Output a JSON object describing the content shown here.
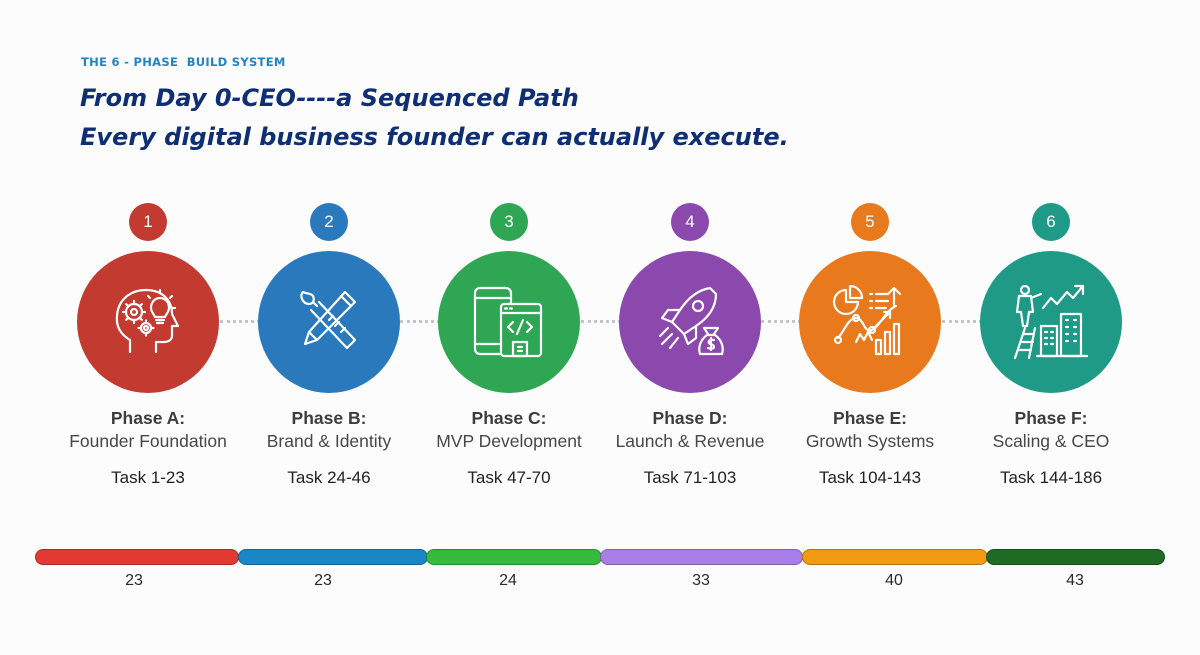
{
  "header": {
    "eyebrow": "THE 6 - PHASE  BUILD SYSTEM",
    "headline_line1": "From Day 0-CEO----a Sequenced Path",
    "headline_line2": "Every digital business founder can actually execute."
  },
  "phases": [
    {
      "number": "1",
      "name": "Phase A:",
      "subtitle": "Founder Foundation",
      "tasks": "Task 1-23",
      "color": "#c23a30",
      "icon": "head-gears-lightbulb-icon"
    },
    {
      "number": "2",
      "name": "Phase B:",
      "subtitle": "Brand & Identity",
      "tasks": "Task 24-46",
      "color": "#2a79bd",
      "icon": "brush-pencil-ruler-icon"
    },
    {
      "number": "3",
      "name": "Phase C:",
      "subtitle": "MVP Development",
      "tasks": "Task 47-70",
      "color": "#2ea653",
      "icon": "devices-code-icon"
    },
    {
      "number": "4",
      "name": "Phase D:",
      "subtitle": "Launch & Revenue",
      "tasks": "Task 71-103",
      "color": "#8c49ad",
      "icon": "rocket-moneybag-icon"
    },
    {
      "number": "5",
      "name": "Phase E:",
      "subtitle": "Growth Systems",
      "tasks": "Task 104-143",
      "color": "#e9791d",
      "icon": "analytics-charts-icon"
    },
    {
      "number": "6",
      "name": "Phase F:",
      "subtitle": "Scaling & CEO",
      "tasks": "Task 144-186",
      "color": "#1e9a86",
      "icon": "person-growth-buildings-icon"
    }
  ],
  "progress_bar": {
    "segments": [
      {
        "value": 23,
        "label": "23",
        "color": "#e03a32"
      },
      {
        "value": 23,
        "label": "23",
        "color": "#1987c6"
      },
      {
        "value": 24,
        "label": "24",
        "color": "#34bb3c"
      },
      {
        "value": 33,
        "label": "33",
        "color": "#a97ee8"
      },
      {
        "value": 40,
        "label": "40",
        "color": "#f29a13"
      },
      {
        "value": 43,
        "label": "43",
        "color": "#1f6a25"
      }
    ]
  }
}
